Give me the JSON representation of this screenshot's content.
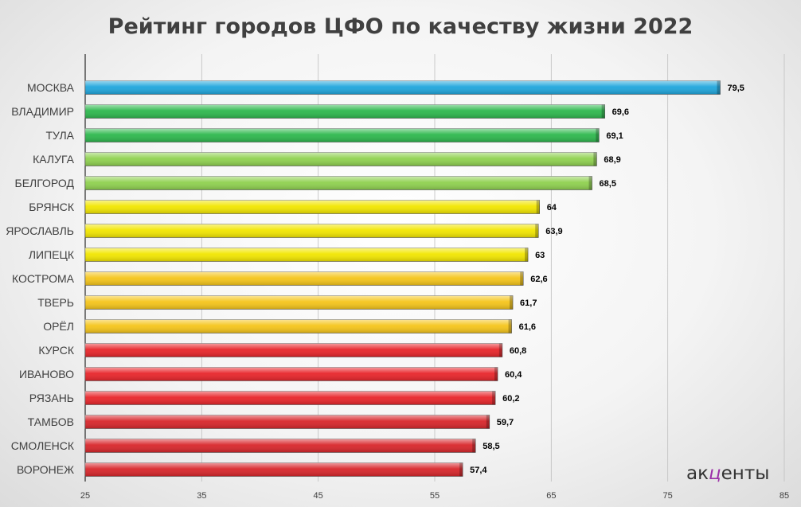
{
  "chart_data": {
    "type": "bar",
    "orientation": "horizontal",
    "title": "Рейтинг городов ЦФО по качеству жизни 2022",
    "categories": [
      "МОСКВА",
      "ВЛАДИМИР",
      "ТУЛА",
      "КАЛУГА",
      "БЕЛГОРОД",
      "БРЯНСК",
      "ЯРОСЛАВЛЬ",
      "ЛИПЕЦК",
      "КОСТРОМА",
      "ТВЕРЬ",
      "ОРЁЛ",
      "КУРСК",
      "ИВАНОВО",
      "РЯЗАНЬ",
      "ТАМБОВ",
      "СМОЛЕНСК",
      "ВОРОНЕЖ"
    ],
    "values": [
      79.5,
      69.6,
      69.1,
      68.9,
      68.5,
      64,
      63.9,
      63,
      62.6,
      61.7,
      61.6,
      60.8,
      60.4,
      60.2,
      59.7,
      58.5,
      57.4
    ],
    "value_labels": [
      "79,5",
      "69,6",
      "69,1",
      "68,9",
      "68,5",
      "64",
      "63,9",
      "63",
      "62,6",
      "61,7",
      "61,6",
      "60,8",
      "60,4",
      "60,2",
      "59,7",
      "58,5",
      "57,4"
    ],
    "bar_colors": [
      "#1fa6dc",
      "#2db84d",
      "#2db84d",
      "#8fd14f",
      "#8fd14f",
      "#f2e600",
      "#f2e600",
      "#f2e600",
      "#f5c51a",
      "#f5c51a",
      "#f5c51a",
      "#e8252a",
      "#e8252a",
      "#e8252a",
      "#d8262b",
      "#d8262b",
      "#d8262b"
    ],
    "xlim": [
      25,
      85
    ],
    "xticks": [
      25,
      35,
      45,
      55,
      65,
      75,
      85
    ],
    "grid": true,
    "legend": "none"
  },
  "logo": {
    "part1": "ак",
    "part2": "ц",
    "part3": "енты",
    "accent": "#9b2fa8"
  }
}
